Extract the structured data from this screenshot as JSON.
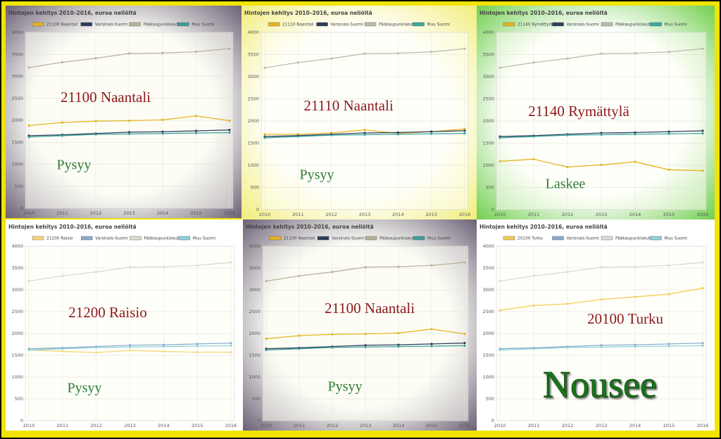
{
  "chart_data": [
    {
      "type": "line",
      "title": "Hintojen kehitys 2010–2016, euroa neliöltä",
      "categories": [
        "2010",
        "2011",
        "2012",
        "2013",
        "2014",
        "2015",
        "2016"
      ],
      "series": [
        {
          "name": "21100 Naantali",
          "color": "#e6b422",
          "values": [
            1880,
            1950,
            1980,
            1990,
            2010,
            2100,
            1990
          ]
        },
        {
          "name": "Varsinais-Suomi",
          "color": "#2b3d5c",
          "values": [
            1650,
            1670,
            1700,
            1730,
            1740,
            1760,
            1780
          ]
        },
        {
          "name": "Pääkaupunkiseutu",
          "color": "#b8b29a",
          "values": [
            3200,
            3320,
            3410,
            3520,
            3530,
            3560,
            3630
          ]
        },
        {
          "name": "Muu Suomi",
          "color": "#3f9e9a",
          "values": [
            1620,
            1650,
            1680,
            1690,
            1700,
            1710,
            1720
          ]
        }
      ],
      "ylim": [
        0,
        4000
      ],
      "yticks": [
        0,
        500,
        1000,
        1500,
        2000,
        2500,
        3000,
        3500,
        4000
      ],
      "grid": true,
      "annotations": [
        "21100 Naantali",
        "Pysyy"
      ]
    },
    {
      "type": "line",
      "title": "Hintojen kehitys 2010–2016, euroa neliöltä",
      "categories": [
        "2010",
        "2011",
        "2012",
        "2013",
        "2014",
        "2015",
        "2016"
      ],
      "series": [
        {
          "name": "21110 Naantali",
          "color": "#e6b422",
          "values": [
            1700,
            1700,
            1730,
            1800,
            1720,
            1760,
            1820
          ]
        },
        {
          "name": "Varsinais-Suomi",
          "color": "#2b3d5c",
          "values": [
            1650,
            1670,
            1700,
            1730,
            1740,
            1760,
            1780
          ]
        },
        {
          "name": "Pääkaupunkiseutu",
          "color": "#b8bfa8",
          "values": [
            3200,
            3320,
            3410,
            3520,
            3530,
            3560,
            3630
          ]
        },
        {
          "name": "Muu Suomi",
          "color": "#3aa8a0",
          "values": [
            1620,
            1650,
            1680,
            1690,
            1700,
            1710,
            1720
          ]
        }
      ],
      "ylim": [
        0,
        4000
      ],
      "yticks": [
        0,
        500,
        1000,
        1500,
        2000,
        2500,
        3000,
        3500,
        4000
      ],
      "grid": true,
      "annotations": [
        "21110 Naantali",
        "Pysyy"
      ]
    },
    {
      "type": "line",
      "title": "Hintojen kehitys 2010–2016, euroa neliöltä",
      "categories": [
        "2010",
        "2011",
        "2012",
        "2013",
        "2014",
        "2015",
        "2016"
      ],
      "series": [
        {
          "name": "21140 Rymättylä",
          "color": "#e6b422",
          "values": [
            1090,
            1140,
            960,
            1010,
            1080,
            900,
            880
          ]
        },
        {
          "name": "Varsinais-Suomi",
          "color": "#2b3d5c",
          "values": [
            1650,
            1670,
            1700,
            1730,
            1740,
            1760,
            1780
          ]
        },
        {
          "name": "Pääkaupunkiseutu",
          "color": "#b8bfa8",
          "values": [
            3200,
            3320,
            3410,
            3520,
            3530,
            3560,
            3630
          ]
        },
        {
          "name": "Muu Suomi",
          "color": "#3aa8a0",
          "values": [
            1620,
            1650,
            1680,
            1690,
            1700,
            1710,
            1720
          ]
        }
      ],
      "ylim": [
        0,
        4000
      ],
      "yticks": [
        0,
        500,
        1000,
        1500,
        2000,
        2500,
        3000,
        3500,
        4000
      ],
      "grid": true,
      "annotations": [
        "21140 Rymättylä",
        "Laskee"
      ]
    },
    {
      "type": "line",
      "title": "Hintojen kehitys 2010–2016, euroa neliöltä",
      "categories": [
        "2010",
        "2011",
        "2012",
        "2013",
        "2014",
        "2015",
        "2016"
      ],
      "series": [
        {
          "name": "21200 Raisio",
          "color": "#f5d77a",
          "values": [
            1620,
            1590,
            1560,
            1610,
            1590,
            1570,
            1570
          ]
        },
        {
          "name": "Varsinais-Suomi",
          "color": "#8aaccc",
          "values": [
            1650,
            1670,
            1700,
            1730,
            1740,
            1760,
            1780
          ]
        },
        {
          "name": "Pääkaupunkiseutu",
          "color": "#d6ddd0",
          "values": [
            3200,
            3320,
            3410,
            3520,
            3530,
            3560,
            3630
          ]
        },
        {
          "name": "Muu Suomi",
          "color": "#8fd0dc",
          "values": [
            1620,
            1650,
            1680,
            1690,
            1700,
            1710,
            1720
          ]
        }
      ],
      "ylim": [
        0,
        4000
      ],
      "yticks": [
        0,
        500,
        1000,
        1500,
        2000,
        2500,
        3000,
        3500,
        4000
      ],
      "grid": true,
      "annotations": [
        "21200 Raisio",
        "Pysyy"
      ]
    },
    {
      "type": "line",
      "title": "Hintojen kehitys 2010–2016, euroa neliöltä",
      "categories": [
        "2010",
        "2011",
        "2012",
        "2013",
        "2014",
        "2015",
        "2016"
      ],
      "series": [
        {
          "name": "21100 Naantali",
          "color": "#e6b422",
          "values": [
            1880,
            1950,
            1980,
            1990,
            2010,
            2100,
            1990
          ]
        },
        {
          "name": "Varsinais-Suomi",
          "color": "#2b3d5c",
          "values": [
            1650,
            1670,
            1700,
            1730,
            1740,
            1760,
            1780
          ]
        },
        {
          "name": "Pääkaupunkiseutu",
          "color": "#b8b29a",
          "values": [
            3200,
            3320,
            3410,
            3520,
            3530,
            3560,
            3630
          ]
        },
        {
          "name": "Muu Suomi",
          "color": "#3f9e9a",
          "values": [
            1620,
            1650,
            1680,
            1690,
            1700,
            1710,
            1720
          ]
        }
      ],
      "ylim": [
        0,
        4000
      ],
      "yticks": [
        0,
        500,
        1000,
        1500,
        2000,
        2500,
        3000,
        3500,
        4000
      ],
      "grid": true,
      "annotations": [
        "21100 Naantali",
        "Pysyy"
      ]
    },
    {
      "type": "line",
      "title": "Hintojen kehitys 2010–2016, euroa neliöltä",
      "categories": [
        "2010",
        "2011",
        "2012",
        "2013",
        "2014",
        "2015",
        "2016"
      ],
      "series": [
        {
          "name": "20100 Turku",
          "color": "#f5cc55",
          "values": [
            2530,
            2640,
            2680,
            2780,
            2840,
            2900,
            3040
          ]
        },
        {
          "name": "Varsinais-Suomi",
          "color": "#8aaccc",
          "values": [
            1650,
            1670,
            1700,
            1730,
            1740,
            1760,
            1780
          ]
        },
        {
          "name": "Pääkaupunkiseutu",
          "color": "#d6ddd0",
          "values": [
            3200,
            3320,
            3410,
            3520,
            3530,
            3560,
            3630
          ]
        },
        {
          "name": "Muu Suomi",
          "color": "#8fd0dc",
          "values": [
            1620,
            1650,
            1680,
            1690,
            1700,
            1710,
            1720
          ]
        }
      ],
      "ylim": [
        0,
        4000
      ],
      "yticks": [
        0,
        500,
        1000,
        1500,
        2000,
        2500,
        3000,
        3500,
        4000
      ],
      "grid": true,
      "annotations": [
        "20100 Turku",
        "Nousee"
      ]
    }
  ]
}
